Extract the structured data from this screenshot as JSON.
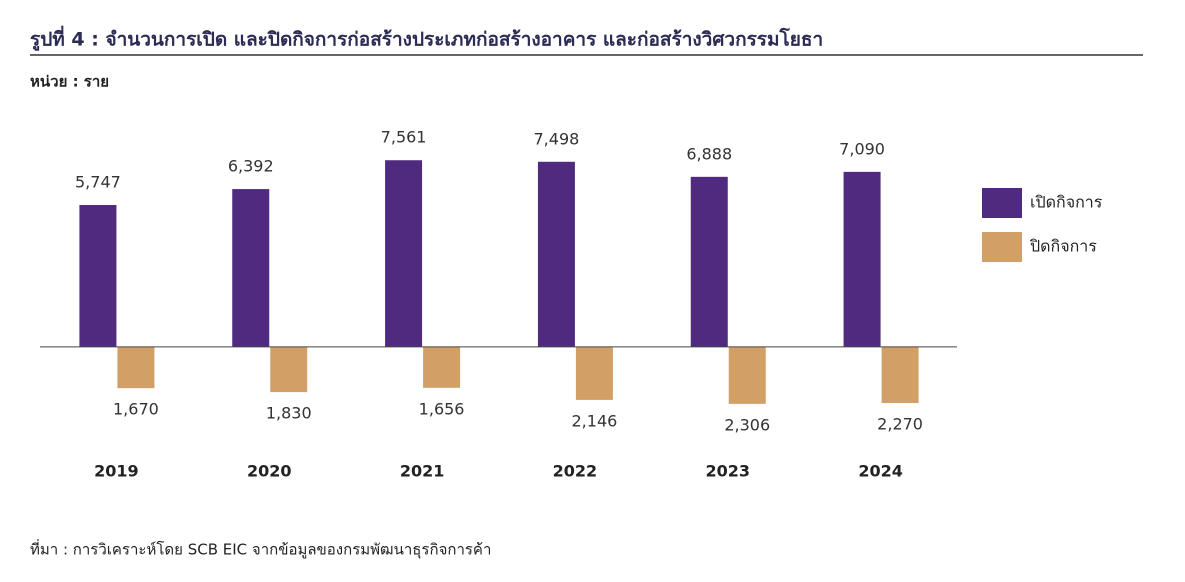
{
  "chart_data": {
    "type": "bar",
    "title": "รูปที่ 4 : จำนวนการเปิด และปิดกิจการก่อสร้างประเภทก่อสร้างอาคาร และก่อสร้างวิศวกรรมโยธา",
    "subtitle": "หน่วย : ราย",
    "source": "ที่มา : การวิเคราะห์โดย SCB EIC จากข้อมูลของกรมพัฒนาธุรกิจการค้า",
    "categories": [
      "2019",
      "2020",
      "2021",
      "2022",
      "2023",
      "2024"
    ],
    "series": [
      {
        "name": "เปิดกิจการ",
        "color": "#4f2a7e",
        "values": [
          5747,
          6392,
          7561,
          7498,
          6888,
          7090
        ],
        "value_labels": [
          "5,747",
          "6,392",
          "7,561",
          "7,498",
          "6,888",
          "7,090"
        ]
      },
      {
        "name": "ปิดกิจการ",
        "color": "#d2a066",
        "values": [
          -1670,
          -1830,
          -1656,
          -2146,
          -2306,
          -2270
        ],
        "value_labels": [
          "1,670",
          "1,830",
          "1,656",
          "2,146",
          "2,306",
          "2,270"
        ]
      }
    ],
    "ylim": [
      -3000,
      10000
    ],
    "legend": "right"
  }
}
